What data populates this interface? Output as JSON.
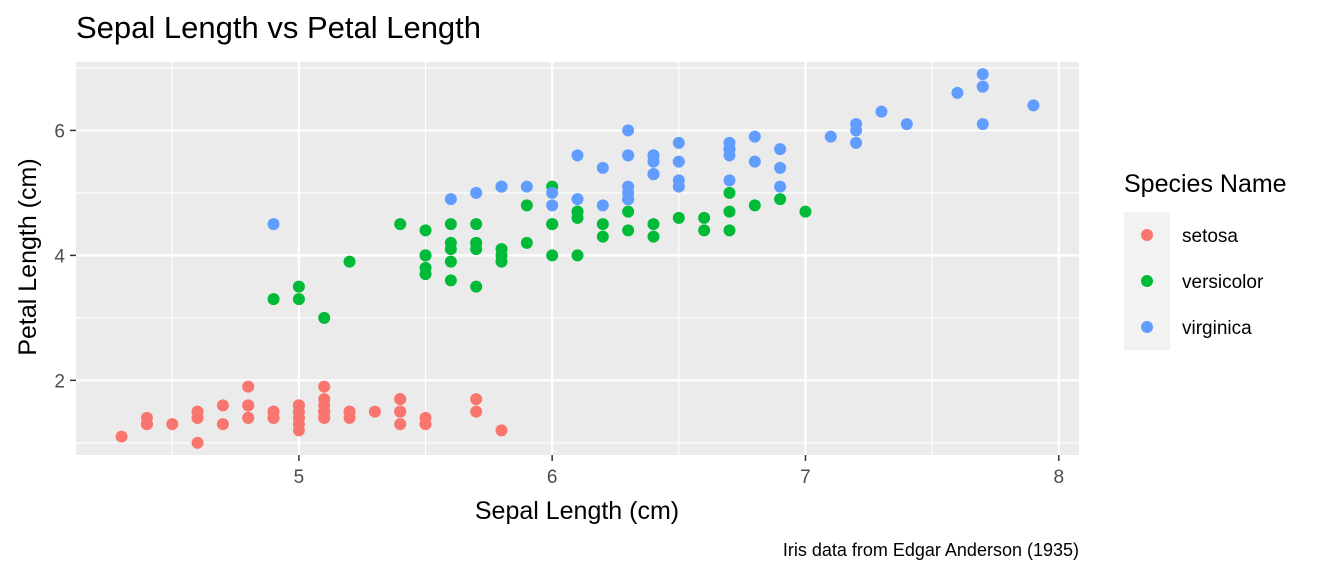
{
  "chart_data": {
    "type": "scatter",
    "title": "Sepal Length vs Petal Length",
    "xlabel": "Sepal Length (cm)",
    "ylabel": "Petal Length (cm)",
    "caption": "Iris data from Edgar Anderson (1935)",
    "xlim": [
      4.12,
      8.08
    ],
    "ylim": [
      0.805,
      7.095
    ],
    "x_ticks": [
      5,
      6,
      7,
      8
    ],
    "y_ticks": [
      2,
      4,
      6
    ],
    "x_tick_labels": [
      "5",
      "6",
      "7",
      "8"
    ],
    "y_tick_labels": [
      "2",
      "4",
      "6"
    ],
    "grid": true,
    "legend": {
      "title": "Species Name",
      "position": "right",
      "entries": [
        "setosa",
        "versicolor",
        "virginica"
      ]
    },
    "colors": {
      "setosa": "#F8766D",
      "versicolor": "#00BA38",
      "virginica": "#619CFF",
      "panel_bg": "#EBEBEB",
      "legend_key_bg": "#F2F2F2"
    },
    "series": [
      {
        "name": "setosa",
        "x": [
          5.1,
          4.9,
          4.7,
          4.6,
          5.0,
          5.4,
          4.6,
          5.0,
          4.4,
          4.9,
          5.4,
          4.8,
          4.8,
          4.3,
          5.8,
          5.7,
          5.4,
          5.1,
          5.7,
          5.1,
          5.4,
          5.1,
          4.6,
          5.1,
          4.8,
          5.0,
          5.0,
          5.2,
          5.2,
          4.7,
          4.8,
          5.4,
          5.2,
          5.5,
          4.9,
          5.0,
          5.5,
          4.9,
          4.4,
          5.1,
          5.0,
          4.5,
          4.4,
          5.0,
          5.1,
          4.8,
          5.1,
          4.6,
          5.3,
          5.0
        ],
        "y": [
          1.4,
          1.4,
          1.3,
          1.5,
          1.4,
          1.7,
          1.4,
          1.5,
          1.4,
          1.5,
          1.5,
          1.6,
          1.4,
          1.1,
          1.2,
          1.5,
          1.3,
          1.4,
          1.7,
          1.5,
          1.7,
          1.5,
          1.0,
          1.7,
          1.9,
          1.6,
          1.6,
          1.5,
          1.4,
          1.6,
          1.6,
          1.5,
          1.5,
          1.4,
          1.5,
          1.2,
          1.3,
          1.4,
          1.3,
          1.5,
          1.3,
          1.3,
          1.3,
          1.6,
          1.9,
          1.4,
          1.6,
          1.4,
          1.5,
          1.4
        ]
      },
      {
        "name": "versicolor",
        "x": [
          7.0,
          6.4,
          6.9,
          5.5,
          6.5,
          5.7,
          6.3,
          4.9,
          6.6,
          5.2,
          5.0,
          5.9,
          6.0,
          6.1,
          5.6,
          6.7,
          5.6,
          5.8,
          6.2,
          5.6,
          5.9,
          6.1,
          6.3,
          6.1,
          6.4,
          6.6,
          6.8,
          6.7,
          6.0,
          5.7,
          5.5,
          5.5,
          5.8,
          6.0,
          5.4,
          6.0,
          6.7,
          6.3,
          5.6,
          5.5,
          5.5,
          6.1,
          5.8,
          5.0,
          5.6,
          5.7,
          5.7,
          6.2,
          5.1,
          5.7
        ],
        "y": [
          4.7,
          4.5,
          4.9,
          4.0,
          4.6,
          4.5,
          4.7,
          3.3,
          4.6,
          3.9,
          3.5,
          4.2,
          4.0,
          4.7,
          3.6,
          4.4,
          4.5,
          4.1,
          4.5,
          3.9,
          4.8,
          4.0,
          4.9,
          4.7,
          4.3,
          4.4,
          4.8,
          5.0,
          4.5,
          3.5,
          3.8,
          3.7,
          3.9,
          5.1,
          4.5,
          4.5,
          4.7,
          4.4,
          4.1,
          4.0,
          4.4,
          4.6,
          4.0,
          3.3,
          4.2,
          4.2,
          4.2,
          4.3,
          3.0,
          4.1
        ]
      },
      {
        "name": "virginica",
        "x": [
          6.3,
          5.8,
          7.1,
          6.3,
          6.5,
          7.6,
          4.9,
          7.3,
          6.7,
          7.2,
          6.5,
          6.4,
          6.8,
          5.7,
          5.8,
          6.4,
          6.5,
          7.7,
          7.7,
          6.0,
          6.9,
          5.6,
          7.7,
          6.3,
          6.7,
          7.2,
          6.2,
          6.1,
          6.4,
          7.2,
          7.4,
          7.9,
          6.4,
          6.3,
          6.1,
          7.7,
          6.3,
          6.4,
          6.0,
          6.9,
          6.7,
          6.9,
          5.8,
          6.8,
          6.7,
          6.7,
          6.3,
          6.5,
          6.2,
          5.9
        ],
        "y": [
          6.0,
          5.1,
          5.9,
          5.6,
          5.8,
          6.6,
          4.5,
          6.3,
          5.8,
          6.1,
          5.1,
          5.3,
          5.5,
          5.0,
          5.1,
          5.3,
          5.5,
          6.7,
          6.9,
          5.0,
          5.7,
          4.9,
          6.7,
          4.9,
          5.7,
          6.0,
          4.8,
          4.9,
          5.6,
          5.8,
          6.1,
          6.4,
          5.6,
          5.1,
          5.6,
          6.1,
          5.6,
          5.5,
          4.8,
          5.4,
          5.6,
          5.1,
          5.1,
          5.9,
          5.7,
          5.2,
          5.0,
          5.2,
          5.4,
          5.1
        ]
      }
    ]
  }
}
